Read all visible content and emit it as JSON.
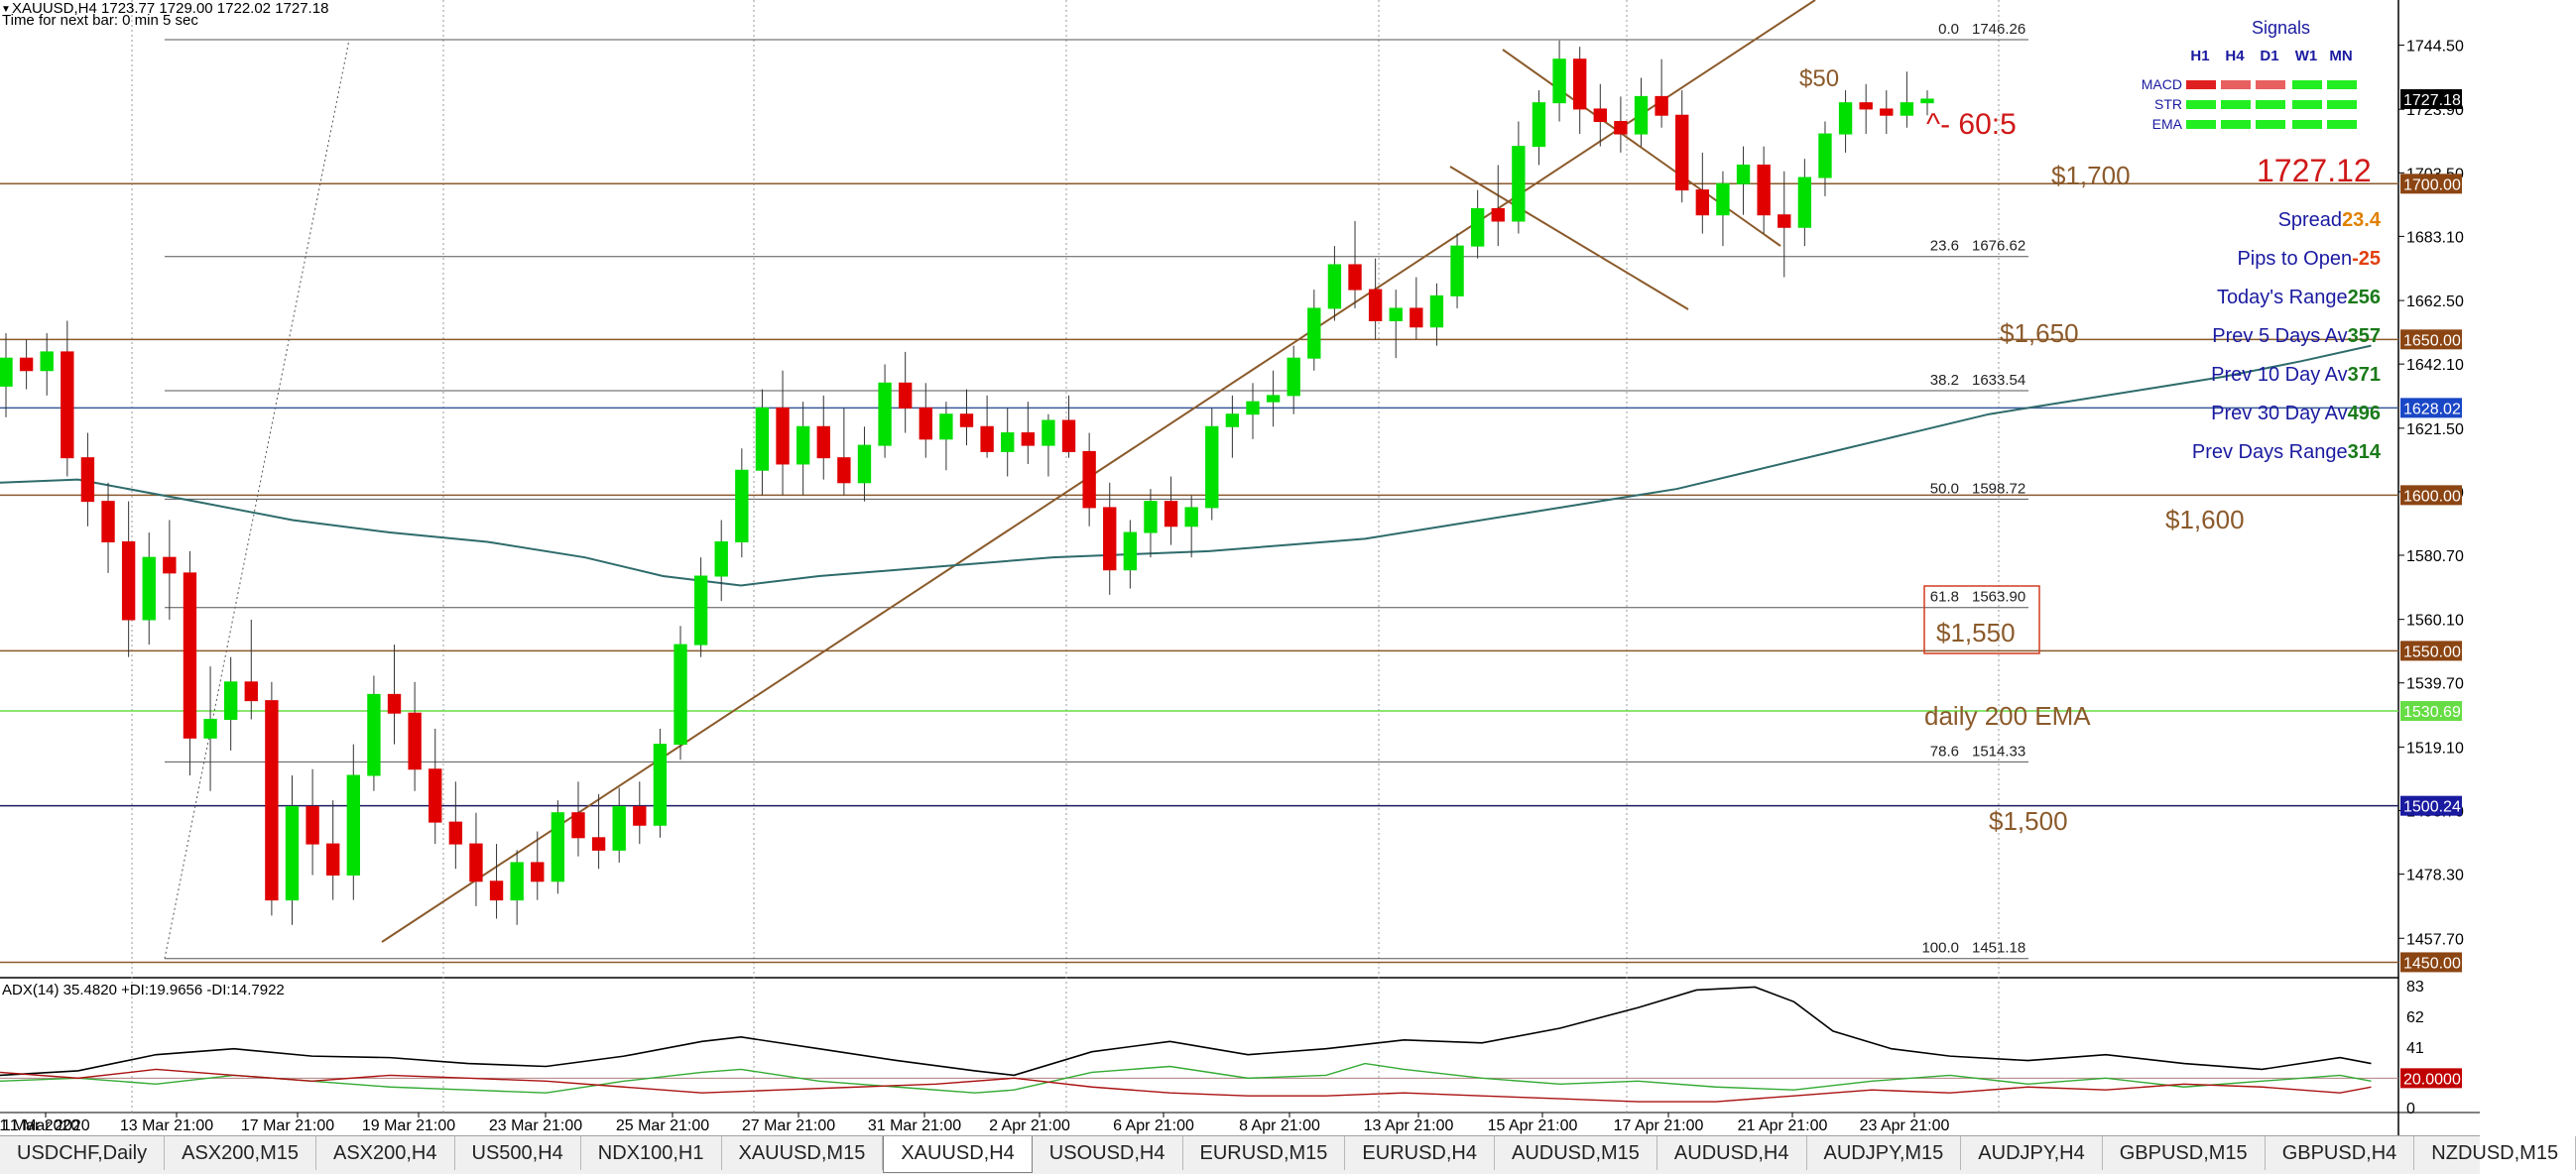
{
  "header": {
    "symbol_line": "XAUUSD,H4  1723.77 1729.00 1722.02 1727.18",
    "timer_line": "Time for next bar: 0 min 5 sec"
  },
  "chart_data": {
    "type": "candlestick",
    "symbol": "XAUUSD",
    "timeframe": "H4",
    "ohlc_last": {
      "open": 1723.77,
      "high": 1729.0,
      "low": 1722.02,
      "close": 1727.18
    },
    "ylim": [
      1446,
      1752
    ],
    "y_ticks": [
      1744.5,
      1723.9,
      1703.5,
      1683.1,
      1662.5,
      1642.1,
      1621.5,
      1601.1,
      1580.7,
      1560.1,
      1539.7,
      1519.1,
      1498.7,
      1478.3,
      1457.7
    ],
    "x_ticks": [
      "11 Mar 2020",
      "13 Mar 21:00",
      "17 Mar 21:00",
      "19 Mar 21:00",
      "23 Mar 21:00",
      "25 Mar 21:00",
      "27 Mar 21:00",
      "31 Mar 21:00",
      "2 Apr 21:00",
      "6 Apr 21:00",
      "8 Apr 21:00",
      "13 Apr 21:00",
      "15 Apr 21:00",
      "17 Apr 21:00",
      "21 Apr 21:00",
      "23 Apr 21:00"
    ],
    "price_badges": [
      {
        "value": "1727.18",
        "color": "#000000"
      },
      {
        "value": "1700.00",
        "color": "#8b4513"
      },
      {
        "value": "1650.00",
        "color": "#8b4513"
      },
      {
        "value": "1628.02",
        "color": "#1a47c6"
      },
      {
        "value": "1600.00",
        "color": "#8b4513"
      },
      {
        "value": "1550.00",
        "color": "#8b4513"
      },
      {
        "value": "1530.69",
        "color": "#66dd44"
      },
      {
        "value": "1500.24",
        "color": "#1a1aa0"
      },
      {
        "value": "1450.00",
        "color": "#8b4513"
      }
    ],
    "horizontal_levels": [
      {
        "price": 1700,
        "color": "#8b5a2b",
        "label": "$1,700"
      },
      {
        "price": 1650,
        "color": "#8b5a2b",
        "label": "$1,650"
      },
      {
        "price": 1628.02,
        "color": "#3a5a9a",
        "label": ""
      },
      {
        "price": 1600,
        "color": "#8b5a2b",
        "label": "$1,600"
      },
      {
        "price": 1550,
        "color": "#8b5a2b",
        "label": "$1,550"
      },
      {
        "price": 1530.69,
        "color": "#66dd44",
        "label": "daily 200 EMA"
      },
      {
        "price": 1500.24,
        "color": "#1a1a60",
        "label": "$1,500"
      },
      {
        "price": 1450,
        "color": "#8b5a2b",
        "label": ""
      }
    ],
    "fibonacci": [
      {
        "level": "0.0",
        "price": "1746.26"
      },
      {
        "level": "23.6",
        "price": "1676.62"
      },
      {
        "level": "38.2",
        "price": "1633.54"
      },
      {
        "level": "50.0",
        "price": "1598.72"
      },
      {
        "level": "61.8",
        "price": "1563.90"
      },
      {
        "level": "78.6",
        "price": "1514.33"
      },
      {
        "level": "100.0",
        "price": "1451.18"
      }
    ],
    "annotations": {
      "fifty": "$50",
      "ratio": "^- 60:5",
      "price_big": "1727.12"
    },
    "candles": [
      [
        1635,
        1652,
        1625,
        1644
      ],
      [
        1644,
        1650,
        1634,
        1640
      ],
      [
        1640,
        1652,
        1632,
        1646
      ],
      [
        1646,
        1656,
        1606,
        1612
      ],
      [
        1612,
        1620,
        1590,
        1598
      ],
      [
        1598,
        1604,
        1575,
        1585
      ],
      [
        1585,
        1598,
        1548,
        1560
      ],
      [
        1560,
        1588,
        1552,
        1580
      ],
      [
        1580,
        1592,
        1560,
        1575
      ],
      [
        1575,
        1582,
        1510,
        1522
      ],
      [
        1522,
        1545,
        1505,
        1528
      ],
      [
        1528,
        1548,
        1518,
        1540
      ],
      [
        1540,
        1560,
        1528,
        1534
      ],
      [
        1534,
        1540,
        1465,
        1470
      ],
      [
        1470,
        1510,
        1462,
        1500
      ],
      [
        1500,
        1512,
        1478,
        1488
      ],
      [
        1488,
        1502,
        1470,
        1478
      ],
      [
        1478,
        1520,
        1470,
        1510
      ],
      [
        1510,
        1542,
        1505,
        1536
      ],
      [
        1536,
        1552,
        1520,
        1530
      ],
      [
        1530,
        1540,
        1505,
        1512
      ],
      [
        1512,
        1525,
        1488,
        1495
      ],
      [
        1495,
        1508,
        1480,
        1488
      ],
      [
        1488,
        1498,
        1468,
        1476
      ],
      [
        1476,
        1488,
        1464,
        1470
      ],
      [
        1470,
        1486,
        1462,
        1482
      ],
      [
        1482,
        1492,
        1470,
        1476
      ],
      [
        1476,
        1502,
        1472,
        1498
      ],
      [
        1498,
        1508,
        1484,
        1490
      ],
      [
        1490,
        1504,
        1480,
        1486
      ],
      [
        1486,
        1506,
        1482,
        1500
      ],
      [
        1500,
        1508,
        1488,
        1494
      ],
      [
        1494,
        1525,
        1490,
        1520
      ],
      [
        1520,
        1558,
        1515,
        1552
      ],
      [
        1552,
        1580,
        1548,
        1574
      ],
      [
        1574,
        1592,
        1566,
        1585
      ],
      [
        1585,
        1615,
        1580,
        1608
      ],
      [
        1608,
        1634,
        1600,
        1628
      ],
      [
        1628,
        1640,
        1600,
        1610
      ],
      [
        1610,
        1630,
        1600,
        1622
      ],
      [
        1622,
        1632,
        1605,
        1612
      ],
      [
        1612,
        1628,
        1600,
        1604
      ],
      [
        1604,
        1622,
        1598,
        1616
      ],
      [
        1616,
        1642,
        1612,
        1636
      ],
      [
        1636,
        1646,
        1620,
        1628
      ],
      [
        1628,
        1636,
        1612,
        1618
      ],
      [
        1618,
        1630,
        1608,
        1626
      ],
      [
        1626,
        1634,
        1616,
        1622
      ],
      [
        1622,
        1632,
        1612,
        1614
      ],
      [
        1614,
        1628,
        1606,
        1620
      ],
      [
        1620,
        1630,
        1610,
        1616
      ],
      [
        1616,
        1626,
        1606,
        1624
      ],
      [
        1624,
        1632,
        1612,
        1614
      ],
      [
        1614,
        1620,
        1590,
        1596
      ],
      [
        1596,
        1604,
        1568,
        1576
      ],
      [
        1576,
        1592,
        1570,
        1588
      ],
      [
        1588,
        1602,
        1580,
        1598
      ],
      [
        1598,
        1606,
        1584,
        1590
      ],
      [
        1590,
        1600,
        1580,
        1596
      ],
      [
        1596,
        1628,
        1592,
        1622
      ],
      [
        1622,
        1632,
        1612,
        1626
      ],
      [
        1626,
        1636,
        1618,
        1630
      ],
      [
        1630,
        1640,
        1622,
        1632
      ],
      [
        1632,
        1648,
        1626,
        1644
      ],
      [
        1644,
        1666,
        1640,
        1660
      ],
      [
        1660,
        1680,
        1656,
        1674
      ],
      [
        1674,
        1688,
        1660,
        1666
      ],
      [
        1666,
        1676,
        1650,
        1656
      ],
      [
        1656,
        1666,
        1644,
        1660
      ],
      [
        1660,
        1670,
        1650,
        1654
      ],
      [
        1654,
        1668,
        1648,
        1664
      ],
      [
        1664,
        1684,
        1660,
        1680
      ],
      [
        1680,
        1698,
        1676,
        1692
      ],
      [
        1692,
        1706,
        1680,
        1688
      ],
      [
        1688,
        1720,
        1684,
        1712
      ],
      [
        1712,
        1730,
        1706,
        1726
      ],
      [
        1726,
        1746,
        1720,
        1740
      ],
      [
        1740,
        1744,
        1716,
        1724
      ],
      [
        1724,
        1732,
        1712,
        1720
      ],
      [
        1720,
        1728,
        1710,
        1716
      ],
      [
        1716,
        1734,
        1712,
        1728
      ],
      [
        1728,
        1740,
        1718,
        1722
      ],
      [
        1722,
        1730,
        1694,
        1698
      ],
      [
        1698,
        1710,
        1684,
        1690
      ],
      [
        1690,
        1704,
        1680,
        1700
      ],
      [
        1700,
        1712,
        1690,
        1706
      ],
      [
        1706,
        1712,
        1684,
        1690
      ],
      [
        1690,
        1704,
        1670,
        1686
      ],
      [
        1686,
        1708,
        1680,
        1702
      ],
      [
        1702,
        1720,
        1696,
        1716
      ],
      [
        1716,
        1730,
        1710,
        1726
      ],
      [
        1726,
        1732,
        1716,
        1724
      ],
      [
        1724,
        1730,
        1716,
        1722
      ],
      [
        1722,
        1736,
        1718,
        1726
      ],
      [
        1726,
        1730,
        1722,
        1727.18
      ]
    ],
    "ema": [
      [
        0,
        1604
      ],
      [
        40,
        1605
      ],
      [
        100,
        1598
      ],
      [
        150,
        1592
      ],
      [
        200,
        1588
      ],
      [
        250,
        1585
      ],
      [
        300,
        1580
      ],
      [
        340,
        1574
      ],
      [
        380,
        1571
      ],
      [
        420,
        1574
      ],
      [
        460,
        1576
      ],
      [
        500,
        1578
      ],
      [
        540,
        1580
      ],
      [
        580,
        1581
      ],
      [
        620,
        1582
      ],
      [
        660,
        1584
      ],
      [
        700,
        1586
      ],
      [
        740,
        1590
      ],
      [
        780,
        1594
      ],
      [
        820,
        1598
      ],
      [
        860,
        1602
      ],
      [
        900,
        1608
      ],
      [
        940,
        1614
      ],
      [
        980,
        1620
      ],
      [
        1020,
        1626
      ],
      [
        1060,
        1630
      ],
      [
        1100,
        1634
      ],
      [
        1140,
        1638
      ],
      [
        1180,
        1643
      ],
      [
        1216,
        1648
      ]
    ],
    "adx": {
      "label": "ADX(14) 35.4820 +DI:19.9656 -DI:14.7922",
      "ylim": [
        0,
        83
      ],
      "y_ticks": [
        "83",
        "62",
        "41",
        "20.0000",
        "0"
      ],
      "level_20": 20,
      "adx_line": [
        [
          0,
          22
        ],
        [
          40,
          25
        ],
        [
          80,
          36
        ],
        [
          120,
          40
        ],
        [
          160,
          35
        ],
        [
          200,
          34
        ],
        [
          240,
          30
        ],
        [
          280,
          28
        ],
        [
          320,
          35
        ],
        [
          360,
          45
        ],
        [
          380,
          48
        ],
        [
          420,
          40
        ],
        [
          460,
          32
        ],
        [
          500,
          25
        ],
        [
          520,
          22
        ],
        [
          560,
          38
        ],
        [
          600,
          45
        ],
        [
          640,
          36
        ],
        [
          680,
          40
        ],
        [
          720,
          46
        ],
        [
          760,
          44
        ],
        [
          800,
          54
        ],
        [
          840,
          68
        ],
        [
          870,
          80
        ],
        [
          900,
          82
        ],
        [
          920,
          72
        ],
        [
          940,
          52
        ],
        [
          970,
          40
        ],
        [
          1000,
          35
        ],
        [
          1040,
          32
        ],
        [
          1080,
          36
        ],
        [
          1120,
          30
        ],
        [
          1160,
          26
        ],
        [
          1200,
          34
        ],
        [
          1216,
          30
        ]
      ],
      "plus_di": [
        [
          0,
          18
        ],
        [
          40,
          20
        ],
        [
          80,
          16
        ],
        [
          120,
          22
        ],
        [
          160,
          18
        ],
        [
          200,
          14
        ],
        [
          240,
          12
        ],
        [
          280,
          10
        ],
        [
          320,
          18
        ],
        [
          360,
          24
        ],
        [
          380,
          26
        ],
        [
          420,
          18
        ],
        [
          460,
          14
        ],
        [
          500,
          10
        ],
        [
          520,
          12
        ],
        [
          560,
          24
        ],
        [
          600,
          28
        ],
        [
          640,
          20
        ],
        [
          680,
          22
        ],
        [
          700,
          30
        ],
        [
          720,
          26
        ],
        [
          760,
          20
        ],
        [
          800,
          16
        ],
        [
          840,
          18
        ],
        [
          880,
          14
        ],
        [
          920,
          12
        ],
        [
          960,
          18
        ],
        [
          1000,
          22
        ],
        [
          1040,
          16
        ],
        [
          1080,
          20
        ],
        [
          1120,
          14
        ],
        [
          1160,
          18
        ],
        [
          1200,
          22
        ],
        [
          1216,
          18
        ]
      ],
      "minus_di": [
        [
          0,
          24
        ],
        [
          40,
          20
        ],
        [
          80,
          26
        ],
        [
          120,
          22
        ],
        [
          160,
          18
        ],
        [
          200,
          22
        ],
        [
          240,
          20
        ],
        [
          280,
          18
        ],
        [
          320,
          14
        ],
        [
          360,
          10
        ],
        [
          400,
          12
        ],
        [
          440,
          14
        ],
        [
          480,
          16
        ],
        [
          520,
          20
        ],
        [
          560,
          14
        ],
        [
          600,
          10
        ],
        [
          640,
          8
        ],
        [
          680,
          8
        ],
        [
          720,
          10
        ],
        [
          760,
          8
        ],
        [
          800,
          6
        ],
        [
          840,
          4
        ],
        [
          880,
          4
        ],
        [
          920,
          8
        ],
        [
          960,
          12
        ],
        [
          1000,
          10
        ],
        [
          1040,
          14
        ],
        [
          1080,
          12
        ],
        [
          1120,
          16
        ],
        [
          1160,
          14
        ],
        [
          1200,
          10
        ],
        [
          1216,
          14
        ]
      ]
    }
  },
  "signals": {
    "title": "Signals",
    "columns": [
      "H1",
      "H4",
      "D1",
      "W1",
      "MN"
    ],
    "rows": [
      {
        "label": "MACD",
        "colors": [
          "#e02020",
          "#e86060",
          "#e86060",
          "#22ee22",
          "#22ee22"
        ]
      },
      {
        "label": "STR",
        "colors": [
          "#22ee22",
          "#22ee22",
          "#22ee22",
          "#22ee22",
          "#22ee22"
        ]
      },
      {
        "label": "EMA",
        "colors": [
          "#22ee22",
          "#22ee22",
          "#22ee22",
          "#22ee22",
          "#22ee22"
        ]
      }
    ]
  },
  "stats": [
    {
      "label": "Spread",
      "value": "23.4",
      "label_color": "#1a1aa0",
      "value_color": "#e08000"
    },
    {
      "label": "Pips to Open",
      "value": "-25",
      "label_color": "#1a1aa0",
      "value_color": "#e04010"
    },
    {
      "label": "Today's Range",
      "value": "256",
      "label_color": "#1a1aa0",
      "value_color": "#1a7a1a"
    },
    {
      "label": "Prev 5 Days Av",
      "value": "357",
      "label_color": "#1a1aa0",
      "value_color": "#1a7a1a"
    },
    {
      "label": "Prev 10 Day Av",
      "value": "371",
      "label_color": "#1a1aa0",
      "value_color": "#1a7a1a"
    },
    {
      "label": "Prev 30 Day Av",
      "value": "496",
      "label_color": "#1a1aa0",
      "value_color": "#1a7a1a"
    },
    {
      "label": "Prev Days Range",
      "value": "314",
      "label_color": "#1a1aa0",
      "value_color": "#1a7a1a"
    }
  ],
  "tabs": [
    {
      "label": "USDCHF,Daily",
      "active": false
    },
    {
      "label": "ASX200,M15",
      "active": false
    },
    {
      "label": "ASX200,H4",
      "active": false
    },
    {
      "label": "US500,H4",
      "active": false
    },
    {
      "label": "NDX100,H1",
      "active": false
    },
    {
      "label": "XAUUSD,M15",
      "active": false
    },
    {
      "label": "XAUUSD,H4",
      "active": true
    },
    {
      "label": "USOUSD,H4",
      "active": false
    },
    {
      "label": "EURUSD,M15",
      "active": false
    },
    {
      "label": "EURUSD,H4",
      "active": false
    },
    {
      "label": "AUDUSD,M15",
      "active": false
    },
    {
      "label": "AUDUSD,H4",
      "active": false
    },
    {
      "label": "AUDJPY,M15",
      "active": false
    },
    {
      "label": "AUDJPY,H4",
      "active": false
    },
    {
      "label": "GBPUSD,M15",
      "active": false
    },
    {
      "label": "GBPUSD,H4",
      "active": false
    },
    {
      "label": "NZDUSD,M15",
      "active": false
    }
  ]
}
